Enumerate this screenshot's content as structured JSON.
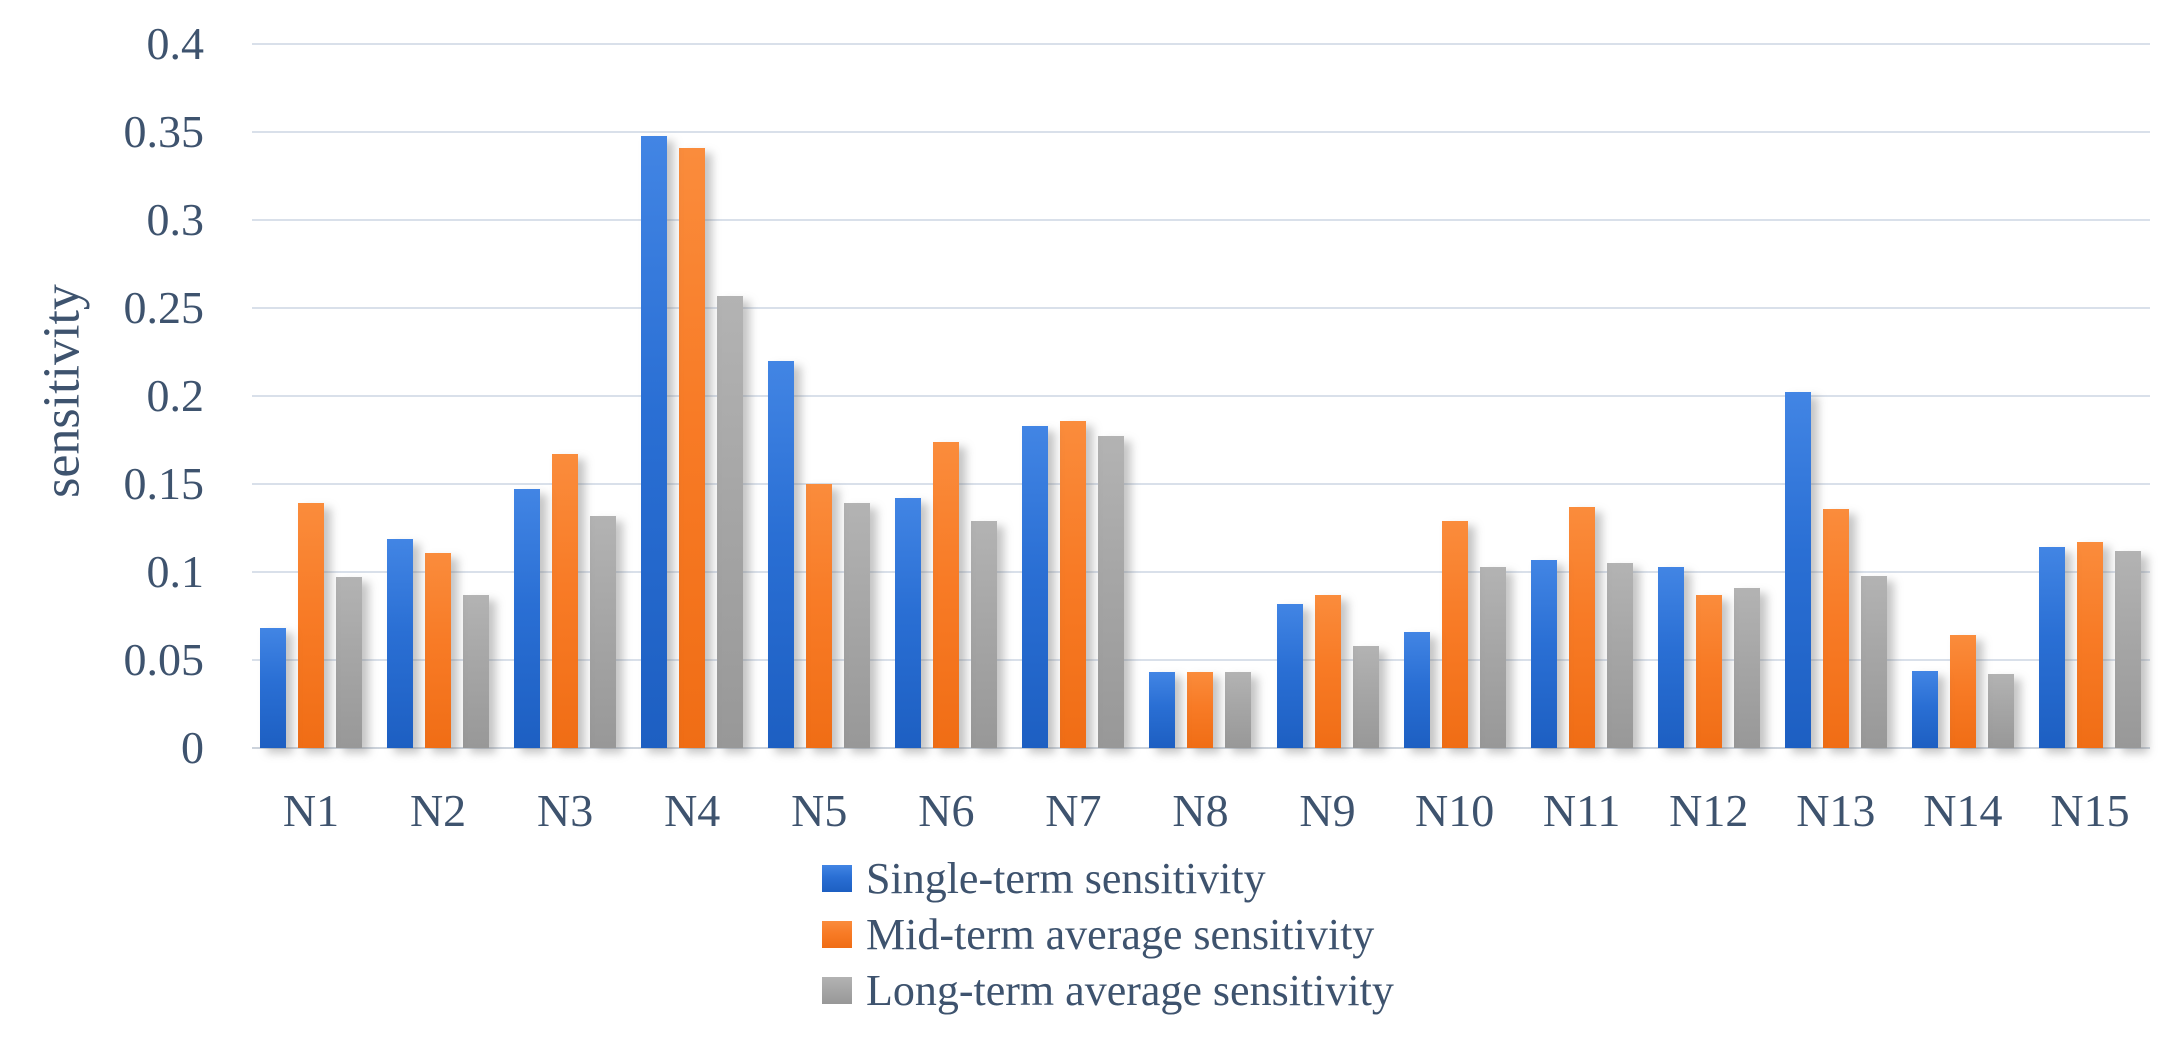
{
  "chart_data": {
    "type": "bar",
    "title": "",
    "xlabel": "",
    "ylabel": "sensitivity",
    "ylim": [
      0,
      0.4
    ],
    "grid": true,
    "legend_position": "bottom-left",
    "ytick_labels": [
      "0",
      "0.05",
      "0.1",
      "0.15",
      "0.2",
      "0.25",
      "0.3",
      "0.35",
      "0.4"
    ],
    "yticks": [
      0,
      0.05,
      0.1,
      0.15,
      0.2,
      0.25,
      0.3,
      0.35,
      0.4
    ],
    "categories": [
      "N1",
      "N2",
      "N3",
      "N4",
      "N5",
      "N6",
      "N7",
      "N8",
      "N9",
      "N10",
      "N11",
      "N12",
      "N13",
      "N14",
      "N15"
    ],
    "series": [
      {
        "name": "Single-term sensitivity",
        "color": "#2a6fd4",
        "values": [
          0.068,
          0.119,
          0.147,
          0.348,
          0.22,
          0.142,
          0.183,
          0.043,
          0.082,
          0.066,
          0.107,
          0.103,
          0.202,
          0.044,
          0.114
        ]
      },
      {
        "name": "Mid-term average sensitivity",
        "color": "#f87b26",
        "values": [
          0.139,
          0.111,
          0.167,
          0.341,
          0.15,
          0.174,
          0.186,
          0.043,
          0.087,
          0.129,
          0.137,
          0.087,
          0.136,
          0.064,
          0.117
        ]
      },
      {
        "name": "Long-term average sensitivity",
        "color": "#a6a6a6",
        "values": [
          0.097,
          0.087,
          0.132,
          0.257,
          0.139,
          0.129,
          0.177,
          0.043,
          0.058,
          0.103,
          0.105,
          0.091,
          0.098,
          0.042,
          0.112
        ]
      }
    ],
    "colors": {
      "text": "#3e536e",
      "gridline": "#d9e0ea",
      "axis_line": "#ccd3dc",
      "series_blue": "#2a6fd4",
      "series_orange": "#f87b26",
      "series_gray": "#a6a6a6"
    }
  }
}
